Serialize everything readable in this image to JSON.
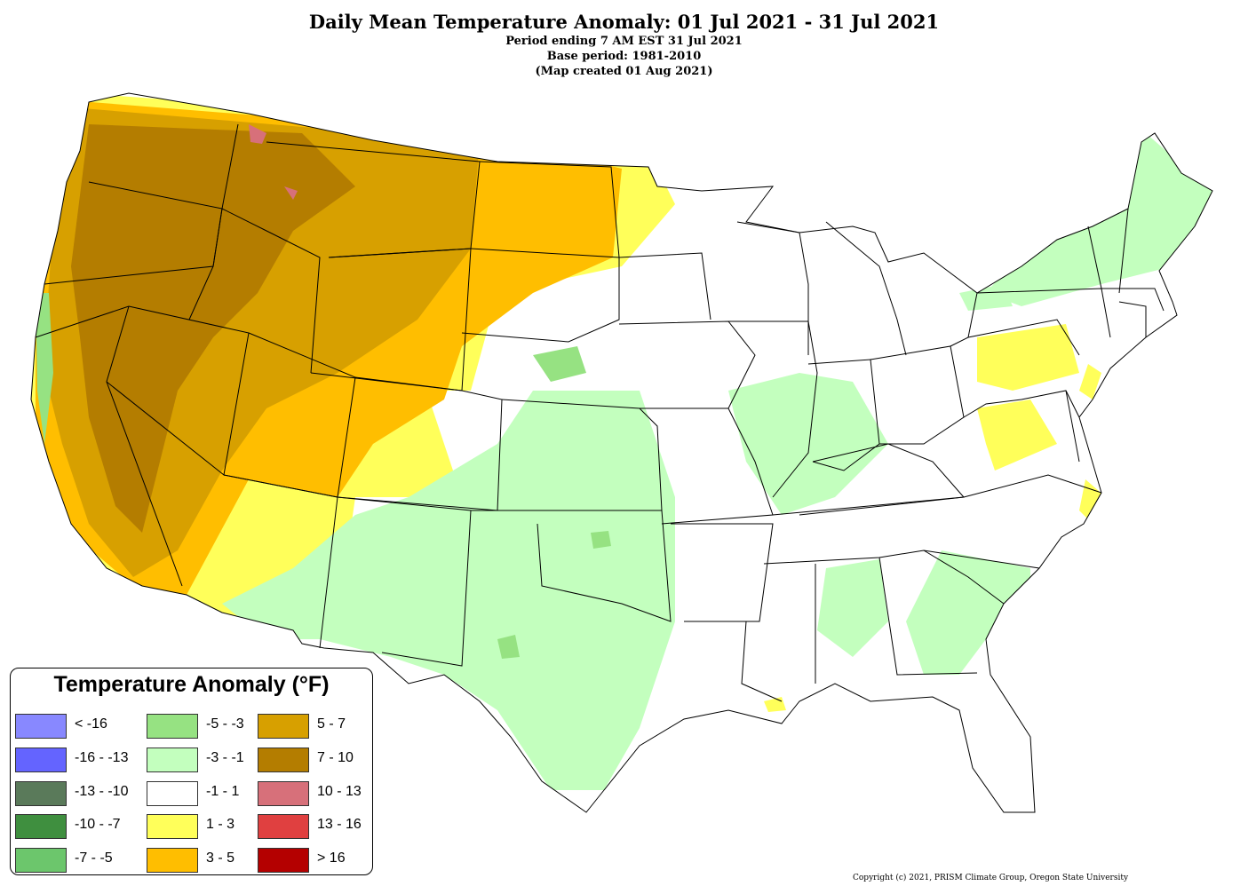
{
  "header": {
    "title": "Daily Mean Temperature Anomaly: 01 Jul 2021 - 31 Jul 2021",
    "period": "Period ending 7 AM EST 31 Jul 2021",
    "base": "Base period: 1981-2010",
    "created": "(Map created 01 Aug 2021)"
  },
  "legend": {
    "title": "Temperature Anomaly (°F)",
    "items": [
      {
        "label": "< -16",
        "color": "#8888ff"
      },
      {
        "label": "-16 - -13",
        "color": "#6464ff"
      },
      {
        "label": "-13 - -10",
        "color": "#5a7a5a"
      },
      {
        "label": "-10 - -7",
        "color": "#3f8f3f"
      },
      {
        "label": "-7 - -5",
        "color": "#6cc66c"
      },
      {
        "label": "-5 - -3",
        "color": "#96e282"
      },
      {
        "label": "-3 - -1",
        "color": "#c3ffbe"
      },
      {
        "label": "-1 - 1",
        "color": "#ffffff"
      },
      {
        "label": "1 - 3",
        "color": "#ffff5a"
      },
      {
        "label": "3 - 5",
        "color": "#ffbe00"
      },
      {
        "label": "5 - 7",
        "color": "#d7a000"
      },
      {
        "label": "7 - 10",
        "color": "#b47d00"
      },
      {
        "label": "10 - 13",
        "color": "#d7707a"
      },
      {
        "label": "13 - 16",
        "color": "#e04040"
      },
      {
        "label": "> 16",
        "color": "#b40000"
      }
    ]
  },
  "copyright": "Copyright (c) 2021, PRISM Climate Group, Oregon State University"
}
